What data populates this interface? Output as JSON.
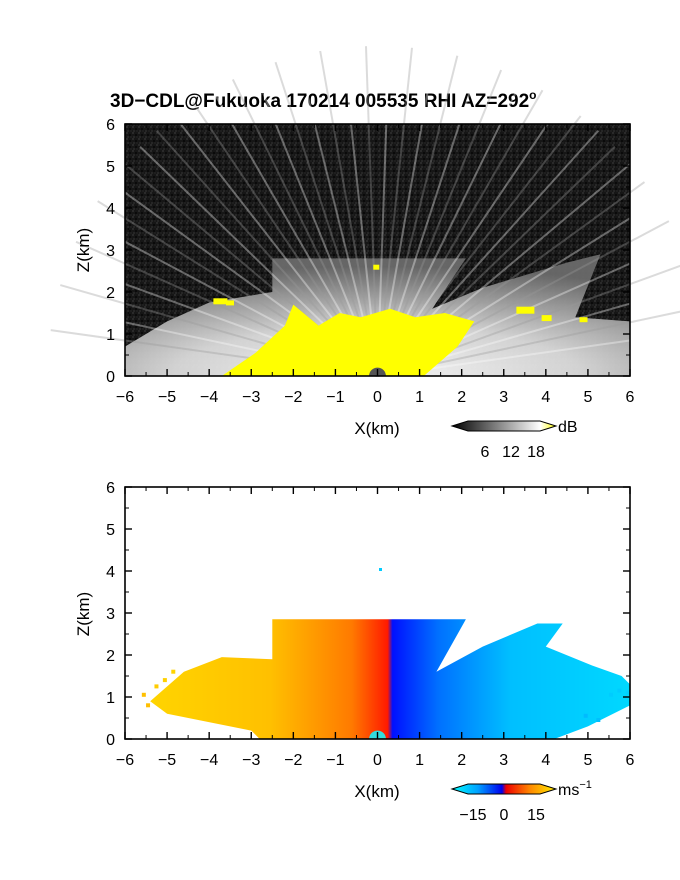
{
  "title": {
    "main": "3D−CDL@Fukuoka 170214 005535 RHI AZ=292",
    "sup": "o"
  },
  "colors": {
    "background_top": "#141414",
    "echo_yellow": "#ffff00",
    "radial_white": "#e8e8e8",
    "doppler_blue": "#0033ff",
    "doppler_cyan": "#00ccff",
    "doppler_red": "#ff2200",
    "doppler_orange": "#ff9900",
    "doppler_yellow": "#ffdd33"
  },
  "chart_data": [
    {
      "type": "heatmap",
      "name": "reflectivity",
      "xlabel": "X(km)",
      "ylabel": "Z(km)",
      "xlim": [
        -6,
        6
      ],
      "ylim": [
        0,
        6
      ],
      "xticks": [
        -6,
        -5,
        -4,
        -3,
        -2,
        -1,
        0,
        1,
        2,
        3,
        4,
        5,
        6
      ],
      "yticks": [
        0,
        1,
        2,
        3,
        4,
        5,
        6
      ],
      "grid": false,
      "colorbar": {
        "unit": "dB",
        "ticks": [
          "6",
          "12",
          "18"
        ],
        "range": [
          0,
          20
        ]
      },
      "echo_top_km": [
        {
          "x": -6.0,
          "z": 0.7
        },
        {
          "x": -5.0,
          "z": 1.3
        },
        {
          "x": -4.0,
          "z": 1.75
        },
        {
          "x": -2.5,
          "z": 2.0
        },
        {
          "x": -2.5,
          "z": 2.8
        },
        {
          "x": 2.1,
          "z": 2.8
        },
        {
          "x": 1.3,
          "z": 1.6
        },
        {
          "x": 2.5,
          "z": 2.1
        },
        {
          "x": 4.5,
          "z": 2.7
        },
        {
          "x": 5.3,
          "z": 2.9
        },
        {
          "x": 4.7,
          "z": 1.4
        },
        {
          "x": 6.0,
          "z": 1.3
        }
      ]
    },
    {
      "type": "heatmap",
      "name": "doppler_velocity",
      "xlabel": "X(km)",
      "ylabel": "Z(km)",
      "xlim": [
        -6,
        6
      ],
      "ylim": [
        0,
        6
      ],
      "xticks": [
        -6,
        -5,
        -4,
        -3,
        -2,
        -1,
        0,
        1,
        2,
        3,
        4,
        5,
        6
      ],
      "yticks": [
        0,
        1,
        2,
        3,
        4,
        5,
        6
      ],
      "grid": false,
      "colorbar": {
        "unit": "ms",
        "unit_sup": "−1",
        "ticks": [
          "−15",
          "0",
          "15"
        ],
        "range": [
          -20,
          20
        ]
      }
    }
  ]
}
